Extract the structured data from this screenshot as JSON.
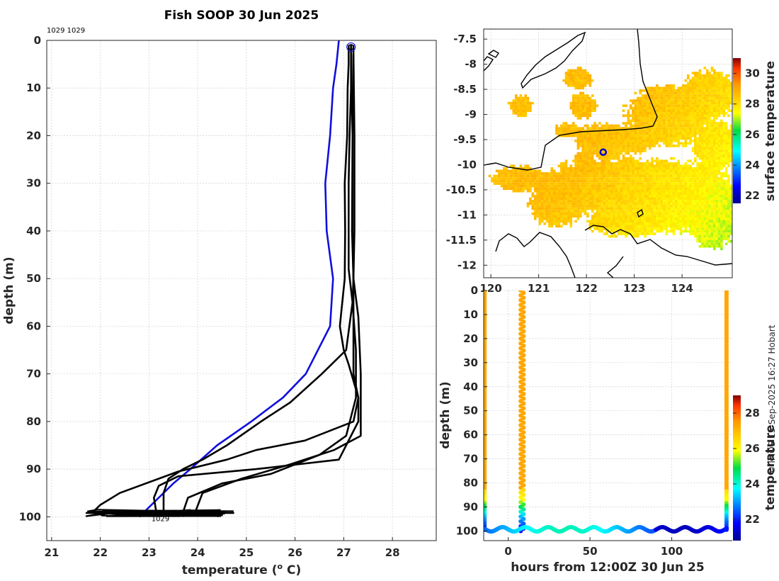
{
  "header": {
    "title": "Fish SOOP 30 Jun 2025",
    "ids_label": "1029 1029",
    "profile_tag": "1029",
    "credit": "© IMOS 15-Sep-2025 16:27 Hobart"
  },
  "colors": {
    "profile_black": "#000000",
    "profile_blue": "#1010dd",
    "marker_blue": "#0000cc"
  },
  "chart_data": [
    {
      "id": "profile",
      "type": "line",
      "title": "Fish SOOP 30 Jun 2025",
      "xlabel": "temperature (",
      "xlabel_sup": "o",
      "xlabel_tail": " C)",
      "ylabel": "depth (m)",
      "xlim": [
        20.9,
        28.9
      ],
      "ylim": [
        105,
        0
      ],
      "xticks": [
        "21",
        "22",
        "23",
        "24",
        "25",
        "26",
        "27",
        "28"
      ],
      "yticks": [
        "0",
        "10",
        "20",
        "30",
        "40",
        "50",
        "60",
        "70",
        "80",
        "90",
        "100"
      ],
      "grid": true,
      "series": [
        {
          "name": "blue",
          "color": "#1010dd",
          "points": [
            [
              26.9,
              0
            ],
            [
              26.85,
              5
            ],
            [
              26.78,
              10
            ],
            [
              26.72,
              20
            ],
            [
              26.62,
              30
            ],
            [
              26.65,
              40
            ],
            [
              26.78,
              50
            ],
            [
              26.72,
              60
            ],
            [
              26.22,
              70
            ],
            [
              25.75,
              75
            ],
            [
              25.1,
              80
            ],
            [
              24.4,
              85
            ],
            [
              23.85,
              90
            ],
            [
              23.5,
              93
            ],
            [
              23.2,
              96
            ],
            [
              22.9,
              99
            ],
            [
              22.8,
              100
            ]
          ]
        },
        {
          "name": "black-1",
          "color": "#000000",
          "points": [
            [
              27.1,
              1
            ],
            [
              27.1,
              5
            ],
            [
              27.08,
              10
            ],
            [
              27.07,
              20
            ],
            [
              27.02,
              30
            ],
            [
              27.03,
              40
            ],
            [
              27.02,
              50
            ],
            [
              26.97,
              55
            ],
            [
              26.92,
              60
            ],
            [
              27.0,
              65
            ],
            [
              27.1,
              68
            ],
            [
              27.3,
              75
            ],
            [
              27.3,
              80
            ],
            [
              27.05,
              85
            ],
            [
              26.9,
              88
            ],
            [
              25.2,
              90
            ],
            [
              23.6,
              91.5
            ],
            [
              23.2,
              93.5
            ],
            [
              23.1,
              96
            ],
            [
              23.15,
              99
            ]
          ]
        },
        {
          "name": "black-2",
          "color": "#000000",
          "points": [
            [
              27.15,
              1
            ],
            [
              27.15,
              10
            ],
            [
              27.12,
              20
            ],
            [
              27.1,
              30
            ],
            [
              27.1,
              40
            ],
            [
              27.1,
              48
            ],
            [
              27.18,
              55
            ],
            [
              27.25,
              65
            ],
            [
              27.25,
              75
            ],
            [
              27.05,
              83
            ],
            [
              26.5,
              87
            ],
            [
              25.5,
              91
            ],
            [
              24.5,
              93
            ],
            [
              23.8,
              96
            ],
            [
              23.7,
              99
            ]
          ]
        },
        {
          "name": "black-3",
          "color": "#000000",
          "points": [
            [
              27.2,
              1
            ],
            [
              27.2,
              10
            ],
            [
              27.18,
              20
            ],
            [
              27.18,
              30
            ],
            [
              27.18,
              40
            ],
            [
              27.2,
              50
            ],
            [
              27.3,
              58
            ],
            [
              27.35,
              70
            ],
            [
              27.35,
              80
            ],
            [
              27.35,
              83
            ],
            [
              26.8,
              86
            ],
            [
              25.9,
              89
            ],
            [
              24.9,
              92
            ],
            [
              24.1,
              95
            ],
            [
              23.95,
              99
            ]
          ]
        },
        {
          "name": "black-4",
          "color": "#000000",
          "points": [
            [
              27.15,
              2
            ],
            [
              27.18,
              20
            ],
            [
              27.17,
              40
            ],
            [
              27.2,
              50
            ],
            [
              27.2,
              60
            ],
            [
              27.2,
              70
            ],
            [
              27.3,
              75
            ],
            [
              27.2,
              80
            ],
            [
              26.2,
              84
            ],
            [
              25.2,
              86
            ],
            [
              24.6,
              88
            ],
            [
              23.6,
              90.5
            ],
            [
              22.4,
              95
            ],
            [
              22.0,
              97.5
            ],
            [
              21.85,
              99
            ]
          ]
        },
        {
          "name": "black-5",
          "color": "#000000",
          "points": [
            [
              27.2,
              3
            ],
            [
              27.22,
              20
            ],
            [
              27.22,
              40
            ],
            [
              27.2,
              50
            ],
            [
              27.18,
              55
            ],
            [
              27.05,
              65
            ],
            [
              26.55,
              70
            ],
            [
              25.9,
              76
            ],
            [
              25.3,
              80
            ],
            [
              24.6,
              85
            ],
            [
              24.1,
              88
            ],
            [
              23.7,
              90
            ],
            [
              23.4,
              92
            ],
            [
              23.3,
              95
            ],
            [
              23.3,
              99
            ]
          ]
        }
      ],
      "bottom_tangle": {
        "xmin": 21.7,
        "xmax": 24.75,
        "depth_min": 98.5,
        "depth_max": 100
      },
      "surface_marker": {
        "x": 27.15,
        "depth": 1.4
      }
    },
    {
      "id": "map",
      "type": "heatmap",
      "xticks": [
        "120",
        "121",
        "122",
        "123",
        "124"
      ],
      "yticks": [
        "-7.5",
        "-8",
        "-8.5",
        "-9",
        "-9.5",
        "-10",
        "-10.5",
        "-11",
        "-11.5",
        "-12"
      ],
      "xlim": [
        119.85,
        125.05
      ],
      "ylim": [
        -12.25,
        -7.3
      ],
      "marker": {
        "lon": 122.35,
        "lat": -9.75
      },
      "colorbar": {
        "label": "surface temperature",
        "ticks": [
          "30",
          "28",
          "26",
          "24",
          "22"
        ],
        "range": [
          21.5,
          31
        ]
      }
    },
    {
      "id": "timeseries",
      "type": "scatter",
      "xlabel": "hours from 12:00Z 30 Jun 25",
      "ylabel": "depth (m)",
      "xticks": [
        "0",
        "50",
        "100"
      ],
      "yticks": [
        "0",
        "10",
        "20",
        "30",
        "40",
        "50",
        "60",
        "70",
        "80",
        "90",
        "100"
      ],
      "xlim": [
        -15,
        137
      ],
      "ylim": [
        104,
        0
      ],
      "columns_hours": [
        -14.5,
        8.5,
        133.5
      ],
      "colorbar": {
        "label": "temperature",
        "ticks": [
          "28",
          "26",
          "24",
          "22"
        ],
        "range": [
          20.8,
          29
        ]
      }
    }
  ]
}
